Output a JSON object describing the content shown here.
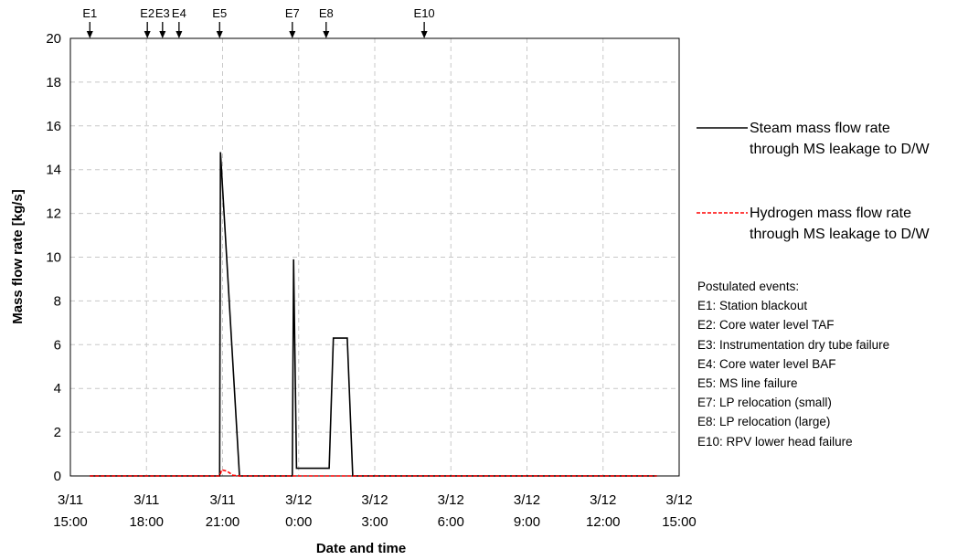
{
  "chart_data": {
    "type": "line",
    "xlabel": "Date and time",
    "ylabel": "Mass flow rate [kg/s]",
    "ylim": [
      0,
      20
    ],
    "yticks": [
      "0",
      "2",
      "4",
      "6",
      "8",
      "10",
      "12",
      "14",
      "16",
      "18",
      "20"
    ],
    "xlim": [
      "3/11 15:00",
      "3/12 15:00"
    ],
    "xticks": [
      {
        "date": "3/11",
        "time": "15:00"
      },
      {
        "date": "3/11",
        "time": "18:00"
      },
      {
        "date": "3/11",
        "time": "21:00"
      },
      {
        "date": "3/12",
        "time": "0:00"
      },
      {
        "date": "3/12",
        "time": "3:00"
      },
      {
        "date": "3/12",
        "time": "6:00"
      },
      {
        "date": "3/12",
        "time": "9:00"
      },
      {
        "date": "3/12",
        "time": "12:00"
      },
      {
        "date": "3/12",
        "time": "15:00"
      }
    ],
    "grid": true,
    "legend_placement": "right",
    "series": [
      {
        "name": "Steam mass flow rate through MS leakage to D/W",
        "label_lines": [
          "Steam mass flow rate",
          "through MS leakage to D/W"
        ],
        "color": "#000000",
        "style": "solid",
        "points": [
          [
            "3/11 15:46",
            0
          ],
          [
            "3/11 20:53",
            0
          ],
          [
            "3/11 20:55",
            14.8
          ],
          [
            "3/11 21:40",
            0
          ],
          [
            "3/11 23:45",
            0
          ],
          [
            "3/11 23:48",
            9.9
          ],
          [
            "3/11 23:55",
            0.35
          ],
          [
            "3/12 1:12",
            0.35
          ],
          [
            "3/12 1:22",
            6.3
          ],
          [
            "3/12 1:55",
            6.3
          ],
          [
            "3/12 2:08",
            0
          ],
          [
            "3/12 14:07",
            0
          ]
        ]
      },
      {
        "name": "Hydrogen mass flow rate through MS leakage to D/W",
        "label_lines": [
          "Hydrogen mass flow rate",
          "through MS leakage to D/W"
        ],
        "color": "#ff0000",
        "style": "dashed",
        "points": [
          [
            "3/11 15:46",
            0
          ],
          [
            "3/11 20:53",
            0
          ],
          [
            "3/11 20:58",
            0.28
          ],
          [
            "3/11 21:10",
            0.22
          ],
          [
            "3/11 21:25",
            0.03
          ],
          [
            "3/11 21:40",
            0
          ],
          [
            "3/12 14:07",
            0
          ]
        ]
      }
    ],
    "events": [
      {
        "label": "E1",
        "time": "3/11 15:46"
      },
      {
        "label": "E2",
        "time": "3/11 18:02"
      },
      {
        "label": "E3",
        "time": "3/11 18:38"
      },
      {
        "label": "E4",
        "time": "3/11 19:17"
      },
      {
        "label": "E5",
        "time": "3/11 20:53"
      },
      {
        "label": "E7",
        "time": "3/11 23:45"
      },
      {
        "label": "E8",
        "time": "3/12 1:05"
      },
      {
        "label": "E10",
        "time": "3/12 4:57"
      }
    ],
    "notes": [
      "Postulated events:",
      "E1: Station blackout",
      "E2: Core water level TAF",
      "E3: Instrumentation dry tube failure",
      "E4: Core water level BAF",
      "E5: MS line failure",
      "E7: LP relocation (small)",
      "E8: LP relocation (large)",
      "E10: RPV lower head failure"
    ]
  }
}
